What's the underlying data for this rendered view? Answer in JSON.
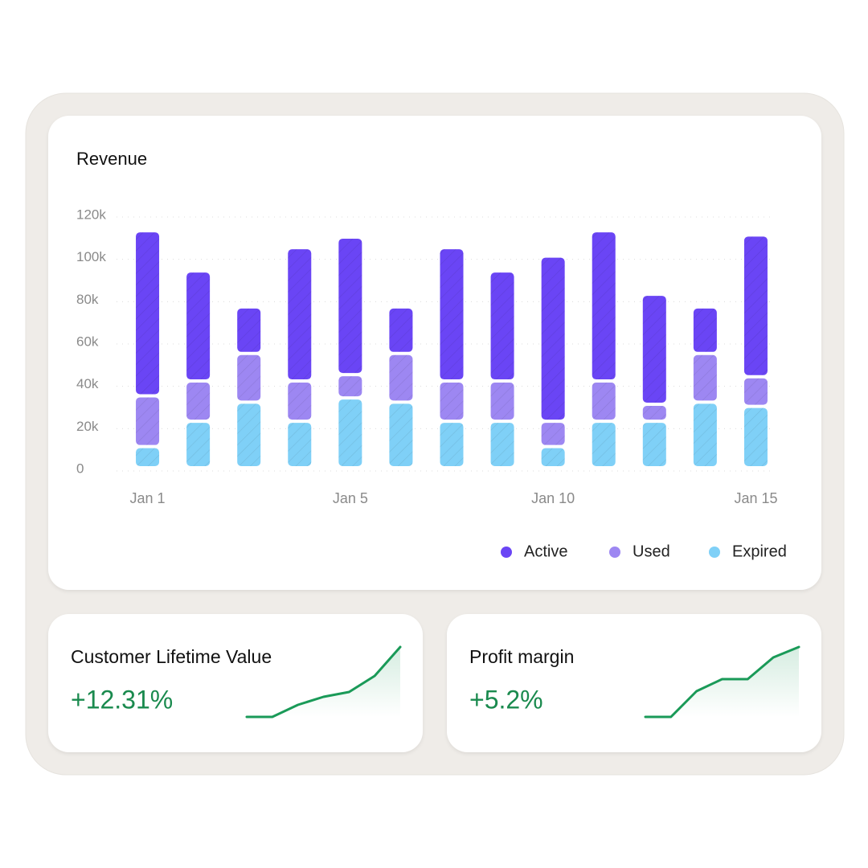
{
  "chart_data": [
    {
      "type": "bar",
      "stacked": true,
      "title": "Revenue",
      "categories": [
        "Jan 1",
        null,
        null,
        null,
        "Jan 5",
        null,
        null,
        null,
        "Jan 10",
        null,
        null,
        null,
        "Jan 15"
      ],
      "series": [
        {
          "name": "Expired",
          "color": "#7fd0f7",
          "values": [
            10000,
            22000,
            31000,
            22000,
            33000,
            31000,
            22000,
            22000,
            10000,
            22000,
            22000,
            31000,
            29000
          ]
        },
        {
          "name": "Used",
          "color": "#9d87f2",
          "values": [
            24000,
            19000,
            23000,
            19000,
            11000,
            23000,
            19000,
            19000,
            12000,
            19000,
            8000,
            23000,
            14000
          ]
        },
        {
          "name": "Active",
          "color": "#6a45f5",
          "values": [
            78000,
            52000,
            22000,
            63000,
            65000,
            22000,
            63000,
            52000,
            78000,
            71000,
            52000,
            22000,
            67000
          ]
        }
      ],
      "legend_order": [
        "Active",
        "Used",
        "Expired"
      ],
      "ylim": [
        0,
        120000
      ],
      "yticks": [
        {
          "value": 0,
          "label": "0"
        },
        {
          "value": 20000,
          "label": "20k"
        },
        {
          "value": 40000,
          "label": "40k"
        },
        {
          "value": 60000,
          "label": "60k"
        },
        {
          "value": 80000,
          "label": "80k"
        },
        {
          "value": 100000,
          "label": "100k"
        },
        {
          "value": 120000,
          "label": "120k"
        }
      ],
      "grid": true,
      "hatched": true
    },
    {
      "type": "line",
      "title": "Customer Lifetime Value",
      "headline": "+12.31%",
      "color": "#1a9a58",
      "values": [
        0,
        0,
        15,
        25,
        31,
        51,
        87
      ],
      "ylim": [
        0,
        87
      ]
    },
    {
      "type": "line",
      "title": "Profit margin",
      "headline": "+5.2%",
      "color": "#1a9a58",
      "values": [
        0,
        0,
        32,
        47,
        47,
        74,
        87
      ],
      "ylim": [
        0,
        87
      ]
    }
  ]
}
